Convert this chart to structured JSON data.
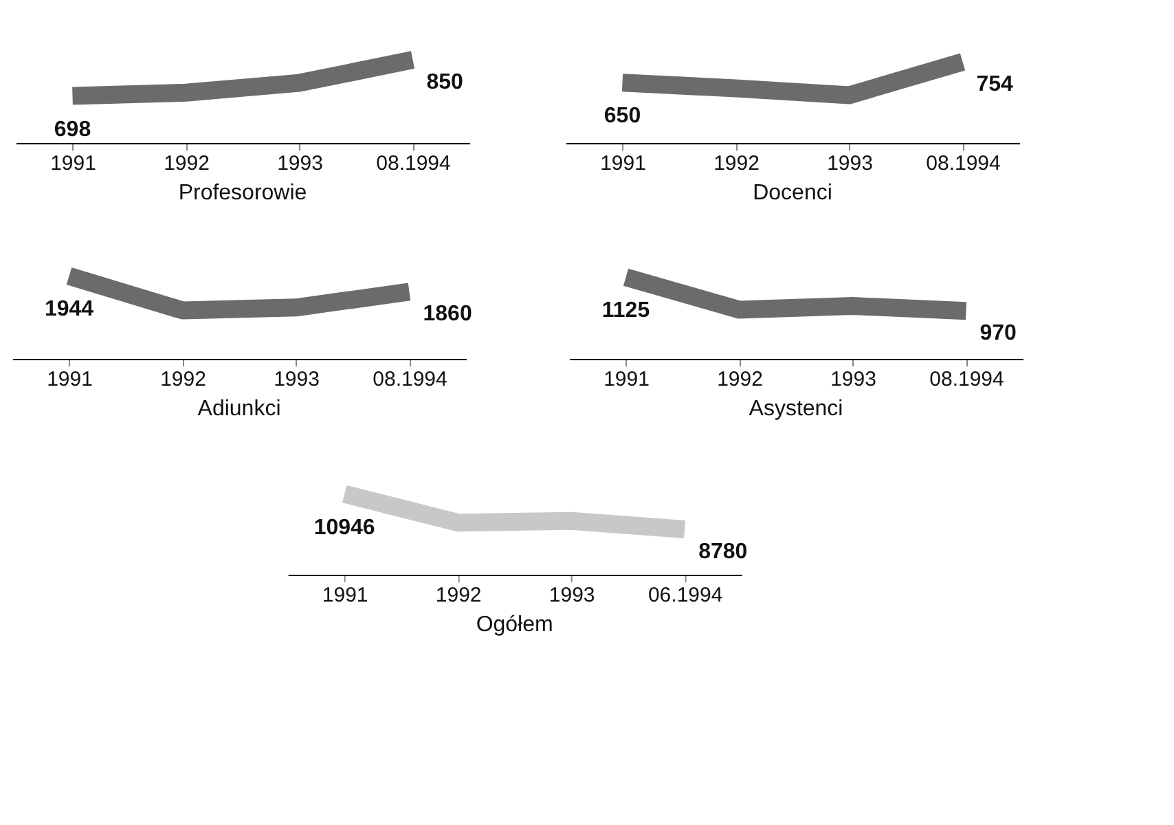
{
  "chart_data": [
    {
      "type": "line",
      "title": "Profesorowie",
      "categories": [
        "1991",
        "1992",
        "1993",
        "08.1994"
      ],
      "series": [
        {
          "color": "#6b6b6b",
          "values": [
            698,
            712,
            753,
            850
          ],
          "value_labels": [
            "698",
            null,
            null,
            "850"
          ]
        }
      ],
      "tick_labels": "x",
      "grid": false,
      "marker": "none"
    },
    {
      "type": "line",
      "title": "Docenci",
      "categories": [
        "1991",
        "1992",
        "1993",
        "08.1994"
      ],
      "series": [
        {
          "color": "#6b6b6b",
          "values": [
            650,
            622,
            588,
            754
          ],
          "value_labels": [
            "650",
            null,
            null,
            "754"
          ]
        }
      ],
      "tick_labels": "x",
      "grid": false,
      "marker": "none"
    },
    {
      "type": "line",
      "title": "Adiunkci",
      "categories": [
        "1991",
        "1992",
        "1993",
        "08.1994"
      ],
      "series": [
        {
          "color": "#6b6b6b",
          "values": [
            1944,
            1760,
            1775,
            1860
          ],
          "value_labels": [
            "1944",
            null,
            null,
            "1860"
          ]
        }
      ],
      "tick_labels": "x",
      "grid": false,
      "marker": "none"
    },
    {
      "type": "line",
      "title": "Asystenci",
      "categories": [
        "1991",
        "1992",
        "1993",
        "08.1994"
      ],
      "series": [
        {
          "color": "#6b6b6b",
          "values": [
            1125,
            976,
            993,
            970
          ],
          "value_labels": [
            "1125",
            null,
            null,
            "970"
          ]
        }
      ],
      "tick_labels": "x",
      "grid": false,
      "marker": "none"
    },
    {
      "type": "line",
      "title": "Ogółem",
      "categories": [
        "1991",
        "1992",
        "1993",
        "06.1994"
      ],
      "series": [
        {
          "color": "#c8c8c8",
          "values": [
            10946,
            9192,
            9295,
            8780
          ],
          "value_labels": [
            "10946",
            null,
            null,
            "8780"
          ]
        }
      ],
      "tick_labels": "x",
      "grid": false,
      "marker": "none"
    }
  ]
}
